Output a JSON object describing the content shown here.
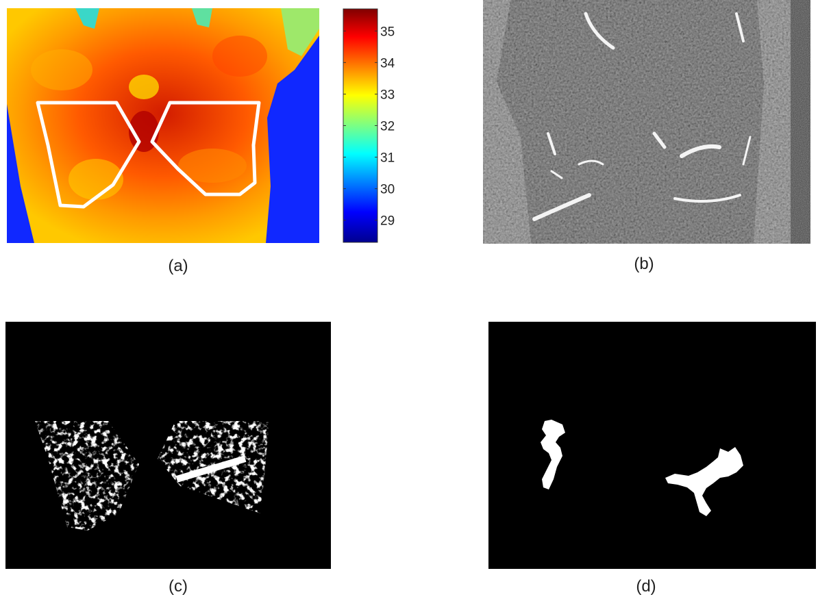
{
  "panels": {
    "a": {
      "caption": "(a)",
      "content": "thermogram",
      "colorbar": {
        "colormap": "jet",
        "ticks": [
          "35",
          "34",
          "33",
          "32",
          "31",
          "30",
          "29"
        ],
        "tick_values": [
          35,
          34,
          33,
          32,
          31,
          30,
          29
        ],
        "range": [
          28.3,
          35.7
        ]
      }
    },
    "b": {
      "caption": "(b)",
      "content": "grayscale-edge-map"
    },
    "c": {
      "caption": "(c)",
      "content": "binary-segmentation"
    },
    "d": {
      "caption": "(d)",
      "content": "binary-vessel-mask"
    }
  },
  "colors": {
    "roi_outline": "#ffffff",
    "background": "#000000"
  }
}
